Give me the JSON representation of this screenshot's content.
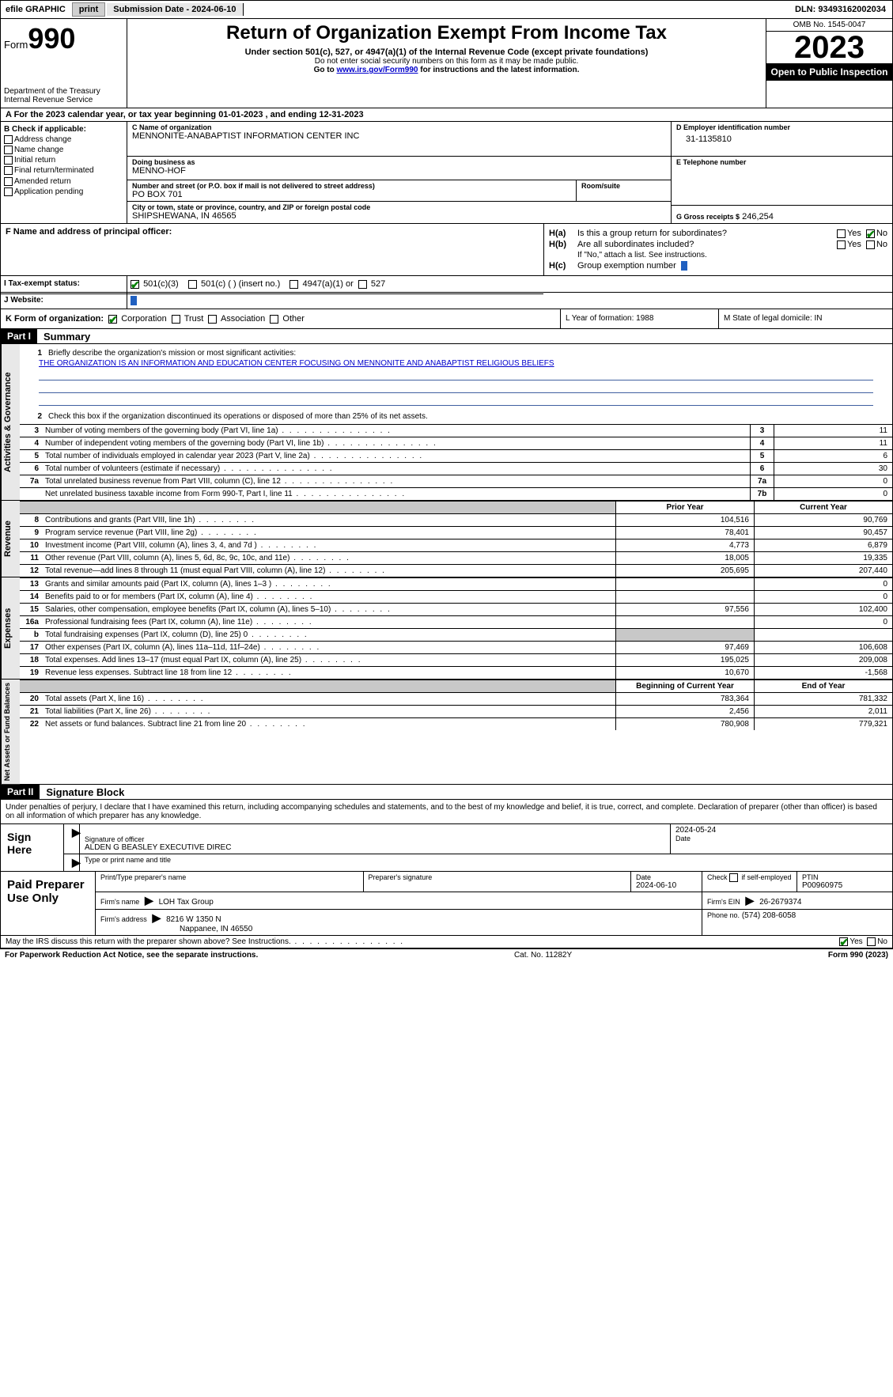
{
  "topbar": {
    "efile": "efile GRAPHIC",
    "print": "print",
    "submission": "Submission Date - 2024-06-10",
    "dln": "DLN: 93493162002034"
  },
  "header": {
    "form_word": "Form",
    "form_num": "990",
    "dept": "Department of the Treasury",
    "irs": "Internal Revenue Service",
    "title": "Return of Organization Exempt From Income Tax",
    "subtitle": "Under section 501(c), 527, or 4947(a)(1) of the Internal Revenue Code (except private foundations)",
    "note1": "Do not enter social security numbers on this form as it may be made public.",
    "note2_pre": "Go to ",
    "note2_link": "www.irs.gov/Form990",
    "note2_post": " for instructions and the latest information.",
    "omb": "OMB No. 1545-0047",
    "year": "2023",
    "open": "Open to Public Inspection"
  },
  "row_a": "A  For the 2023 calendar year, or tax year beginning 01-01-2023    , and ending 12-31-2023",
  "col_b": {
    "header": "B Check if applicable:",
    "opts": [
      "Address change",
      "Name change",
      "Initial return",
      "Final return/terminated",
      "Amended return",
      "Application pending"
    ]
  },
  "org": {
    "c_lbl": "C Name of organization",
    "c_val": "MENNONITE-ANABAPTIST INFORMATION CENTER INC",
    "dba_lbl": "Doing business as",
    "dba_val": "MENNO-HOF",
    "addr_lbl": "Number and street (or P.O. box if mail is not delivered to street address)",
    "addr_val": "PO BOX 701",
    "room_lbl": "Room/suite",
    "city_lbl": "City or town, state or province, country, and ZIP or foreign postal code",
    "city_val": "SHIPSHEWANA, IN  46565",
    "d_lbl": "D Employer identification number",
    "d_val": "31-1135810",
    "e_lbl": "E Telephone number",
    "g_lbl": "G Gross receipts $",
    "g_val": "246,254"
  },
  "section_f": {
    "f_lbl": "F  Name and address of principal officer:",
    "ha_lbl": "H(a)",
    "ha_txt": "Is this a group return for subordinates?",
    "hb_lbl": "H(b)",
    "hb_txt": "Are all subordinates included?",
    "hb_note": "If \"No,\" attach a list. See instructions.",
    "hc_lbl": "H(c)",
    "hc_txt": "Group exemption number",
    "yes": "Yes",
    "no": "No"
  },
  "status": {
    "i_lbl": "I   Tax-exempt status:",
    "opts": [
      "501(c)(3)",
      "501(c) (  ) (insert no.)",
      "4947(a)(1) or",
      "527"
    ],
    "j_lbl": "J   Website:"
  },
  "k_row": {
    "k_lbl": "K Form of organization:",
    "opts": [
      "Corporation",
      "Trust",
      "Association",
      "Other"
    ],
    "l_lbl": "L Year of formation: 1988",
    "m_lbl": "M State of legal domicile: IN"
  },
  "part1": {
    "part": "Part I",
    "title": "Summary",
    "q1_lbl": "1",
    "q1_txt": "Briefly describe the organization's mission or most significant activities:",
    "mission": "THE ORGANIZATION IS AN INFORMATION AND EDUCATION CENTER FOCUSING ON MENNONITE AND ANABAPTIST RELIGIOUS BELIEFS",
    "q2_lbl": "2",
    "q2_txt": "Check this box       if the organization discontinued its operations or disposed of more than 25% of its net assets.",
    "governance": [
      {
        "n": "3",
        "t": "Number of voting members of the governing body (Part VI, line 1a)",
        "b": "3",
        "v": "11"
      },
      {
        "n": "4",
        "t": "Number of independent voting members of the governing body (Part VI, line 1b)",
        "b": "4",
        "v": "11"
      },
      {
        "n": "5",
        "t": "Total number of individuals employed in calendar year 2023 (Part V, line 2a)",
        "b": "5",
        "v": "6"
      },
      {
        "n": "6",
        "t": "Total number of volunteers (estimate if necessary)",
        "b": "6",
        "v": "30"
      },
      {
        "n": "7a",
        "t": "Total unrelated business revenue from Part VIII, column (C), line 12",
        "b": "7a",
        "v": "0"
      },
      {
        "n": "",
        "t": "Net unrelated business taxable income from Form 990-T, Part I, line 11",
        "b": "7b",
        "v": "0"
      }
    ],
    "col_prior": "Prior Year",
    "col_current": "Current Year",
    "revenue": [
      {
        "n": "8",
        "t": "Contributions and grants (Part VIII, line 1h)",
        "v1": "104,516",
        "v2": "90,769"
      },
      {
        "n": "9",
        "t": "Program service revenue (Part VIII, line 2g)",
        "v1": "78,401",
        "v2": "90,457"
      },
      {
        "n": "10",
        "t": "Investment income (Part VIII, column (A), lines 3, 4, and 7d )",
        "v1": "4,773",
        "v2": "6,879"
      },
      {
        "n": "11",
        "t": "Other revenue (Part VIII, column (A), lines 5, 6d, 8c, 9c, 10c, and 11e)",
        "v1": "18,005",
        "v2": "19,335"
      },
      {
        "n": "12",
        "t": "Total revenue—add lines 8 through 11 (must equal Part VIII, column (A), line 12)",
        "v1": "205,695",
        "v2": "207,440"
      }
    ],
    "expenses": [
      {
        "n": "13",
        "t": "Grants and similar amounts paid (Part IX, column (A), lines 1–3 )",
        "v1": "",
        "v2": "0"
      },
      {
        "n": "14",
        "t": "Benefits paid to or for members (Part IX, column (A), line 4)",
        "v1": "",
        "v2": "0"
      },
      {
        "n": "15",
        "t": "Salaries, other compensation, employee benefits (Part IX, column (A), lines 5–10)",
        "v1": "97,556",
        "v2": "102,400"
      },
      {
        "n": "16a",
        "t": "Professional fundraising fees (Part IX, column (A), line 11e)",
        "v1": "",
        "v2": "0"
      },
      {
        "n": "b",
        "t": "Total fundraising expenses (Part IX, column (D), line 25) 0",
        "v1": "SHADE",
        "v2": "SHADE"
      },
      {
        "n": "17",
        "t": "Other expenses (Part IX, column (A), lines 11a–11d, 11f–24e)",
        "v1": "97,469",
        "v2": "106,608"
      },
      {
        "n": "18",
        "t": "Total expenses. Add lines 13–17 (must equal Part IX, column (A), line 25)",
        "v1": "195,025",
        "v2": "209,008"
      },
      {
        "n": "19",
        "t": "Revenue less expenses. Subtract line 18 from line 12",
        "v1": "10,670",
        "v2": "-1,568"
      }
    ],
    "col_begin": "Beginning of Current Year",
    "col_end": "End of Year",
    "net": [
      {
        "n": "20",
        "t": "Total assets (Part X, line 16)",
        "v1": "783,364",
        "v2": "781,332"
      },
      {
        "n": "21",
        "t": "Total liabilities (Part X, line 26)",
        "v1": "2,456",
        "v2": "2,011"
      },
      {
        "n": "22",
        "t": "Net assets or fund balances. Subtract line 21 from line 20",
        "v1": "780,908",
        "v2": "779,321"
      }
    ],
    "side_gov": "Activities & Governance",
    "side_rev": "Revenue",
    "side_exp": "Expenses",
    "side_net": "Net Assets or Fund Balances"
  },
  "part2": {
    "part": "Part II",
    "title": "Signature Block",
    "intro": "Under penalties of perjury, I declare that I have examined this return, including accompanying schedules and statements, and to the best of my knowledge and belief, it is true, correct, and complete. Declaration of preparer (other than officer) is based on all information of which preparer has any knowledge.",
    "sign_here": "Sign Here",
    "sig_officer_lbl": "Signature of officer",
    "sig_date_lbl": "Date",
    "sig_date": "2024-05-24",
    "officer_name": "ALDEN G BEASLEY  EXECUTIVE DIREC",
    "type_name_lbl": "Type or print name and title",
    "paid_prep": "Paid Preparer Use Only",
    "prep_name_lbl": "Print/Type preparer's name",
    "prep_sig_lbl": "Preparer's signature",
    "prep_date_lbl": "Date",
    "prep_date": "2024-06-10",
    "self_emp": "Check         if self-employed",
    "ptin_lbl": "PTIN",
    "ptin": "P00960975",
    "firm_name_lbl": "Firm's name",
    "firm_name": "LOH Tax Group",
    "firm_ein_lbl": "Firm's EIN",
    "firm_ein": "26-2679374",
    "firm_addr_lbl": "Firm's address",
    "firm_addr1": "8216 W 1350 N",
    "firm_addr2": "Nappanee, IN  46550",
    "phone_lbl": "Phone no.",
    "phone": "(574) 208-6058",
    "may_irs": "May the IRS discuss this return with the preparer shown above? See Instructions.",
    "yes": "Yes",
    "no": "No"
  },
  "footer": {
    "left": "For Paperwork Reduction Act Notice, see the separate instructions.",
    "mid": "Cat. No. 11282Y",
    "right": "Form 990 (2023)"
  }
}
